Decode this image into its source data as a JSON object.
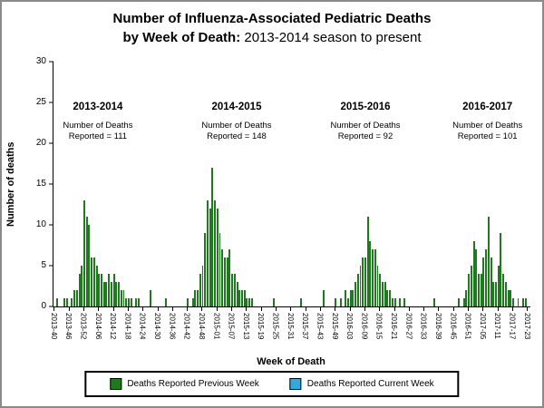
{
  "title": {
    "line1_bold": "Number of Influenza-Associated Pediatric Deaths",
    "line2_bold": "by Week of Death:",
    "line2_normal": "2013-2014 season to present"
  },
  "axes": {
    "x_label": "Week of Death",
    "y_label": "Number of deaths",
    "y_ticks": [
      0,
      5,
      10,
      15,
      20,
      25,
      30
    ]
  },
  "legend": {
    "items": [
      {
        "label": "Deaths Reported Previous Week",
        "color": "#1f7a1f"
      },
      {
        "label": "Deaths Reported Current Week",
        "color": "#35a8dc"
      }
    ]
  },
  "chart_data": {
    "type": "bar",
    "title": "Number of Influenza-Associated Pediatric Deaths by Week of Death: 2013-2014 season to present",
    "xlabel": "Week of Death",
    "ylabel": "Number of deaths",
    "ylim": [
      0,
      30
    ],
    "grid": false,
    "legend_position": "bottom",
    "bar_color": "#1f7a1f",
    "series_name": "Deaths Reported Previous Week",
    "x_weeks_range": [
      {
        "year": 2013,
        "from": 40,
        "to": 52
      },
      {
        "year": 2014,
        "from": 1,
        "to": 53
      },
      {
        "year": 2015,
        "from": 1,
        "to": 52
      },
      {
        "year": 2016,
        "from": 1,
        "to": 52
      },
      {
        "year": 2017,
        "from": 1,
        "to": 23
      }
    ],
    "x_tick_labels": [
      "2013-40",
      "2013-46",
      "2013-52",
      "2014-06",
      "2014-12",
      "2014-18",
      "2014-24",
      "2014-30",
      "2014-36",
      "2014-42",
      "2014-48",
      "2015-01",
      "2015-07",
      "2015-13",
      "2015-19",
      "2015-25",
      "2015-31",
      "2015-37",
      "2015-43",
      "2015-49",
      "2016-03",
      "2016-09",
      "2016-15",
      "2016-21",
      "2016-27",
      "2016-33",
      "2016-39",
      "2016-45",
      "2016-51",
      "2017-05",
      "2017-11",
      "2017-17",
      "2017-23"
    ],
    "points": {
      "2013-41": 1,
      "2013-44": 1,
      "2013-45": 1,
      "2013-47": 1,
      "2013-48": 2,
      "2013-49": 2,
      "2013-50": 4,
      "2013-51": 5,
      "2013-52": 13,
      "2014-01": 11,
      "2014-02": 10,
      "2014-03": 6,
      "2014-04": 6,
      "2014-05": 5,
      "2014-06": 4,
      "2014-07": 4,
      "2014-08": 3,
      "2014-09": 3,
      "2014-10": 4,
      "2014-11": 3,
      "2014-12": 4,
      "2014-13": 3,
      "2014-14": 3,
      "2014-15": 2,
      "2014-16": 2,
      "2014-17": 1,
      "2014-18": 1,
      "2014-19": 1,
      "2014-21": 1,
      "2014-22": 1,
      "2014-27": 2,
      "2014-33": 1,
      "2014-42": 1,
      "2014-44": 1,
      "2014-45": 2,
      "2014-46": 2,
      "2014-47": 4,
      "2014-48": 5,
      "2014-49": 9,
      "2014-50": 13,
      "2014-51": 12,
      "2014-52": 17,
      "2014-53": 13,
      "2015-01": 12,
      "2015-02": 9,
      "2015-03": 7,
      "2015-04": 6,
      "2015-05": 6,
      "2015-06": 7,
      "2015-07": 4,
      "2015-08": 4,
      "2015-09": 3,
      "2015-10": 2,
      "2015-11": 2,
      "2015-12": 2,
      "2015-13": 1,
      "2015-14": 1,
      "2015-15": 1,
      "2015-24": 1,
      "2015-35": 1,
      "2015-44": 2,
      "2015-49": 1,
      "2015-51": 1,
      "2016-01": 2,
      "2016-02": 1,
      "2016-03": 2,
      "2016-04": 2,
      "2016-05": 3,
      "2016-06": 4,
      "2016-07": 5,
      "2016-08": 6,
      "2016-09": 6,
      "2016-10": 11,
      "2016-11": 8,
      "2016-12": 7,
      "2016-13": 7,
      "2016-14": 5,
      "2016-15": 4,
      "2016-16": 3,
      "2016-17": 3,
      "2016-18": 2,
      "2016-19": 2,
      "2016-20": 1,
      "2016-21": 1,
      "2016-23": 1,
      "2016-25": 1,
      "2016-37": 1,
      "2016-47": 1,
      "2016-49": 1,
      "2016-50": 2,
      "2016-51": 4,
      "2016-52": 5,
      "2017-01": 8,
      "2017-02": 7,
      "2017-03": 4,
      "2017-04": 4,
      "2017-05": 6,
      "2017-06": 7,
      "2017-07": 11,
      "2017-08": 6,
      "2017-09": 3,
      "2017-10": 3,
      "2017-11": 5,
      "2017-12": 9,
      "2017-13": 4,
      "2017-14": 3,
      "2017-15": 2,
      "2017-16": 2,
      "2017-17": 1,
      "2017-19": 1,
      "2017-21": 1,
      "2017-22": 1
    },
    "seasons": [
      {
        "label": "2013-2014",
        "note_line1": "Number of Deaths",
        "note_line2": "Reported = 111",
        "reported": 111,
        "x_pct": 9.3
      },
      {
        "label": "2014-2015",
        "note_line1": "Number of Deaths",
        "note_line2": "Reported = 148",
        "reported": 148,
        "x_pct": 38.4
      },
      {
        "label": "2015-2016",
        "note_line1": "Number of Deaths",
        "note_line2": "Reported = 92",
        "reported": 92,
        "x_pct": 65.4
      },
      {
        "label": "2016-2017",
        "note_line1": "Number of Deaths",
        "note_line2": "Reported = 101",
        "reported": 101,
        "x_pct": 91.0
      }
    ]
  }
}
